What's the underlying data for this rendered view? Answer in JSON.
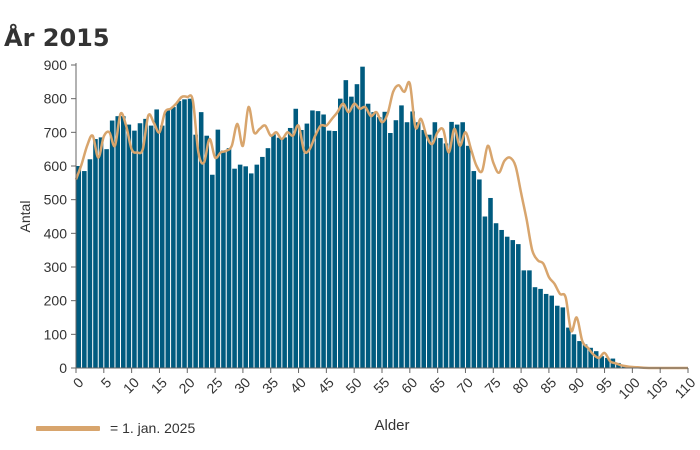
{
  "chart_data": {
    "type": "bar",
    "title": "År 2015",
    "xlabel": "Alder",
    "ylabel": "Antal",
    "ylim": [
      0,
      900
    ],
    "xlim": [
      0,
      110
    ],
    "yticks": [
      "0",
      "100",
      "200",
      "300",
      "400",
      "500",
      "600",
      "700",
      "800",
      "900"
    ],
    "xticks": [
      "0",
      "5",
      "10",
      "15",
      "20",
      "25",
      "30",
      "35",
      "40",
      "45",
      "50",
      "55",
      "60",
      "65",
      "70",
      "75",
      "80",
      "85",
      "90",
      "95",
      "100",
      "105",
      "110"
    ],
    "grid": false,
    "bar_color": "#005b7f",
    "line_color": "#d8a56d",
    "legend": {
      "label": "= 1. jan. 2025",
      "position": "bottom-left"
    },
    "series": [
      {
        "name": "År 2015",
        "kind": "bar",
        "x": [
          0,
          1,
          2,
          3,
          4,
          5,
          6,
          7,
          8,
          9,
          10,
          11,
          12,
          13,
          14,
          15,
          16,
          17,
          18,
          19,
          20,
          21,
          22,
          23,
          24,
          25,
          26,
          27,
          28,
          29,
          30,
          31,
          32,
          33,
          34,
          35,
          36,
          37,
          38,
          39,
          40,
          41,
          42,
          43,
          44,
          45,
          46,
          47,
          48,
          49,
          50,
          51,
          52,
          53,
          54,
          55,
          56,
          57,
          58,
          59,
          60,
          61,
          62,
          63,
          64,
          65,
          66,
          67,
          68,
          69,
          70,
          71,
          72,
          73,
          74,
          75,
          76,
          77,
          78,
          79,
          80,
          81,
          82,
          83,
          84,
          85,
          86,
          87,
          88,
          89,
          90,
          91,
          92,
          93,
          94,
          95,
          96,
          97,
          98,
          99,
          100,
          101,
          102,
          103,
          104,
          105,
          106,
          107,
          108,
          109
        ],
        "values": [
          600,
          585,
          620,
          680,
          685,
          650,
          735,
          748,
          748,
          723,
          705,
          727,
          740,
          720,
          768,
          720,
          765,
          775,
          793,
          798,
          800,
          693,
          760,
          690,
          574,
          708,
          646,
          653,
          592,
          604,
          599,
          578,
          604,
          627,
          653,
          694,
          684,
          685,
          713,
          770,
          707,
          726,
          765,
          763,
          753,
          705,
          704,
          800,
          855,
          806,
          843,
          895,
          785,
          760,
          745,
          761,
          698,
          736,
          780,
          730,
          762,
          730,
          707,
          693,
          730,
          683,
          667,
          731,
          723,
          730,
          660,
          585,
          560,
          450,
          505,
          430,
          410,
          390,
          380,
          368,
          290,
          290,
          240,
          235,
          220,
          215,
          185,
          180,
          120,
          100,
          80,
          70,
          60,
          50,
          35,
          30,
          28,
          15,
          8,
          5,
          3,
          2,
          1,
          1,
          0,
          0,
          0,
          0,
          0,
          0
        ]
      },
      {
        "name": "1. jan. 2025",
        "kind": "line",
        "x": [
          0,
          1,
          2,
          3,
          4,
          5,
          6,
          7,
          8,
          9,
          10,
          11,
          12,
          13,
          14,
          15,
          16,
          17,
          18,
          19,
          20,
          21,
          22,
          23,
          24,
          25,
          26,
          27,
          28,
          29,
          30,
          31,
          32,
          33,
          34,
          35,
          36,
          37,
          38,
          39,
          40,
          41,
          42,
          43,
          44,
          45,
          46,
          47,
          48,
          49,
          50,
          51,
          52,
          53,
          54,
          55,
          56,
          57,
          58,
          59,
          60,
          61,
          62,
          63,
          64,
          65,
          66,
          67,
          68,
          69,
          70,
          71,
          72,
          73,
          74,
          75,
          76,
          77,
          78,
          79,
          80,
          81,
          82,
          83,
          84,
          85,
          86,
          87,
          88,
          89,
          90,
          91,
          92,
          93,
          94,
          95,
          96,
          97,
          98,
          99,
          100,
          101,
          102,
          103,
          104,
          105,
          106,
          107,
          108,
          109,
          110
        ],
        "values": [
          560,
          605,
          660,
          690,
          625,
          688,
          700,
          660,
          755,
          720,
          650,
          640,
          650,
          750,
          728,
          700,
          760,
          770,
          785,
          805,
          805,
          795,
          640,
          610,
          680,
          625,
          640,
          645,
          660,
          725,
          660,
          775,
          700,
          710,
          720,
          690,
          700,
          680,
          700,
          690,
          720,
          645,
          650,
          690,
          720,
          720,
          740,
          760,
          785,
          760,
          785,
          770,
          775,
          748,
          760,
          730,
          755,
          820,
          840,
          820,
          845,
          715,
          740,
          690,
          665,
          700,
          708,
          640,
          710,
          660,
          700,
          650,
          600,
          585,
          660,
          610,
          580,
          615,
          625,
          600,
          520,
          440,
          350,
          320,
          310,
          270,
          250,
          220,
          210,
          110,
          150,
          80,
          60,
          40,
          30,
          45,
          20,
          14,
          8,
          5,
          3,
          2,
          1,
          0,
          0,
          0,
          0,
          0,
          0,
          0,
          0
        ]
      }
    ]
  }
}
